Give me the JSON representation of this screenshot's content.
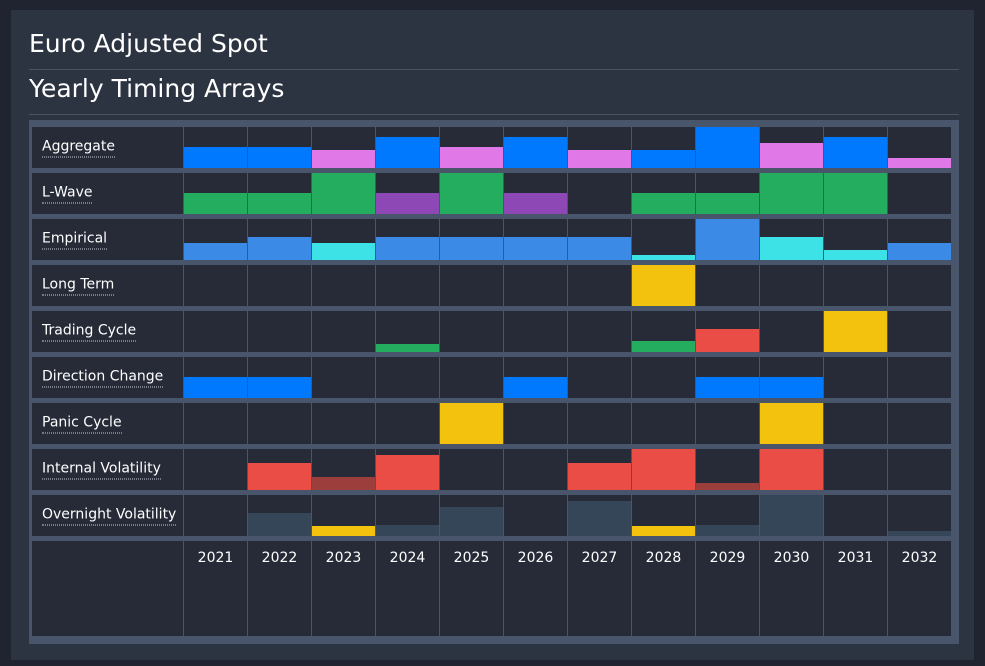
{
  "header": {
    "title": "Euro Adjusted Spot",
    "subtitle": "Yearly Timing Arrays"
  },
  "colors": {
    "blue": "#0079fe",
    "pink": "#e178e8",
    "green": "#24ad5f",
    "purple": "#8e48b5",
    "steel": "#3b8ae6",
    "cyan": "#3de2e7",
    "yellow": "#f2c20f",
    "red": "#e94d45",
    "darkred": "#9c3e3b",
    "slate": "#344658"
  },
  "chart_data": {
    "type": "heatmap",
    "title": "Yearly Timing Arrays",
    "years": [
      "2021",
      "2022",
      "2023",
      "2024",
      "2025",
      "2026",
      "2027",
      "2028",
      "2029",
      "2030",
      "2031",
      "2032"
    ],
    "value_range": [
      0,
      1
    ],
    "rows": [
      {
        "name": "Aggregate",
        "values": [
          0.52,
          0.52,
          0.45,
          0.75,
          0.52,
          0.75,
          0.45,
          0.45,
          1.0,
          0.62,
          0.75,
          0.25
        ],
        "colors": [
          "blue",
          "blue",
          "pink",
          "blue",
          "pink",
          "blue",
          "pink",
          "blue",
          "blue",
          "pink",
          "blue",
          "pink"
        ]
      },
      {
        "name": "L-Wave",
        "values": [
          0.5,
          0.5,
          1.0,
          0.5,
          1.0,
          0.5,
          0,
          0.5,
          0.5,
          1.0,
          1.0,
          0
        ],
        "colors": [
          "green",
          "green",
          "green",
          "purple",
          "green",
          "purple",
          "",
          "green",
          "green",
          "green",
          "green",
          ""
        ]
      },
      {
        "name": "Empirical",
        "values": [
          0.42,
          0.55,
          0.42,
          0.55,
          0.55,
          0.55,
          0.55,
          0.12,
          1.0,
          0.55,
          0.25,
          0.42
        ],
        "colors": [
          "steel",
          "steel",
          "cyan",
          "steel",
          "steel",
          "steel",
          "steel",
          "cyan",
          "steel",
          "cyan",
          "cyan",
          "steel"
        ]
      },
      {
        "name": "Long Term",
        "values": [
          0,
          0,
          0,
          0,
          0,
          0,
          0,
          1.0,
          0,
          0,
          0,
          0
        ],
        "colors": [
          "",
          "",
          "",
          "",
          "",
          "",
          "",
          "yellow",
          "",
          "",
          "",
          ""
        ]
      },
      {
        "name": "Trading Cycle",
        "values": [
          0,
          0,
          0,
          0.2,
          0,
          0,
          0,
          0.28,
          0.55,
          0,
          1.0,
          0
        ],
        "colors": [
          "",
          "",
          "",
          "green",
          "",
          "",
          "",
          "green",
          "red",
          "",
          "yellow",
          ""
        ]
      },
      {
        "name": "Direction Change",
        "values": [
          0.52,
          0.52,
          0,
          0,
          0,
          0.52,
          0,
          0,
          0.52,
          0.52,
          0,
          0
        ],
        "colors": [
          "blue",
          "blue",
          "",
          "",
          "",
          "blue",
          "",
          "",
          "blue",
          "blue",
          "",
          ""
        ]
      },
      {
        "name": "Panic Cycle",
        "values": [
          0,
          0,
          0,
          0,
          1.0,
          0,
          0,
          0,
          0,
          1.0,
          0,
          0
        ],
        "colors": [
          "",
          "",
          "",
          "",
          "yellow",
          "",
          "",
          "",
          "",
          "yellow",
          "",
          ""
        ]
      },
      {
        "name": "Internal Volatility",
        "values": [
          0,
          0.66,
          0.32,
          0.85,
          0,
          0,
          0.66,
          1.0,
          0.16,
          1.0,
          0,
          0
        ],
        "colors": [
          "",
          "red",
          "darkred",
          "red",
          "",
          "",
          "red",
          "red",
          "darkred",
          "red",
          "",
          ""
        ]
      },
      {
        "name": "Overnight Volatility",
        "values": [
          0,
          0.55,
          0.25,
          0.26,
          0.7,
          0,
          0.85,
          0.25,
          0.26,
          1.0,
          0,
          0.12
        ],
        "colors": [
          "",
          "slate",
          "yellow",
          "slate",
          "slate",
          "",
          "slate",
          "yellow",
          "slate",
          "slate",
          "",
          "slate"
        ]
      }
    ]
  }
}
